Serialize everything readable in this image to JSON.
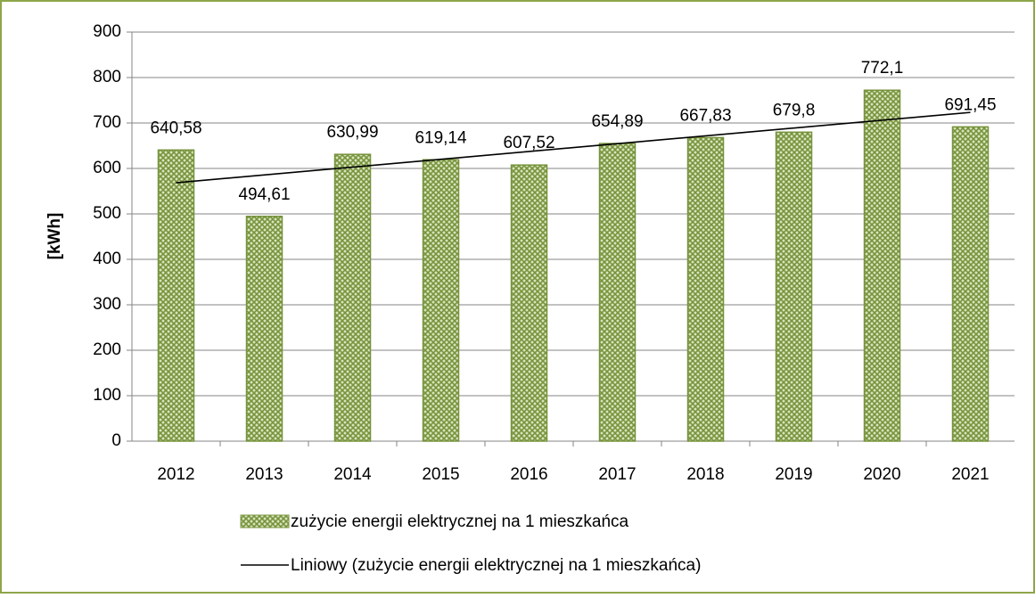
{
  "chart_data": {
    "type": "bar",
    "y_label": "[kWh]",
    "categories": [
      "2012",
      "2013",
      "2014",
      "2015",
      "2016",
      "2017",
      "2018",
      "2019",
      "2020",
      "2021"
    ],
    "series": [
      {
        "name": "zużycie energii elektrycznej na 1 mieszkańca",
        "color": "#9bbb59",
        "values": [
          640.58,
          494.61,
          630.99,
          619.14,
          607.52,
          654.89,
          667.83,
          679.8,
          772.1,
          691.45
        ],
        "value_labels": [
          "640,58",
          "494,61",
          "630,99",
          "619,14",
          "607,52",
          "654,89",
          "667,83",
          "679,8",
          "772,1",
          "691,45"
        ]
      }
    ],
    "trendline": {
      "name": "Liniowy (zużycie energii elektrycznej na 1 mieszkańca)",
      "type": "linear",
      "color": "#000000"
    },
    "ylim": [
      0,
      900
    ],
    "yticks": [
      0,
      100,
      200,
      300,
      400,
      500,
      600,
      700,
      800,
      900
    ],
    "grid": true
  }
}
